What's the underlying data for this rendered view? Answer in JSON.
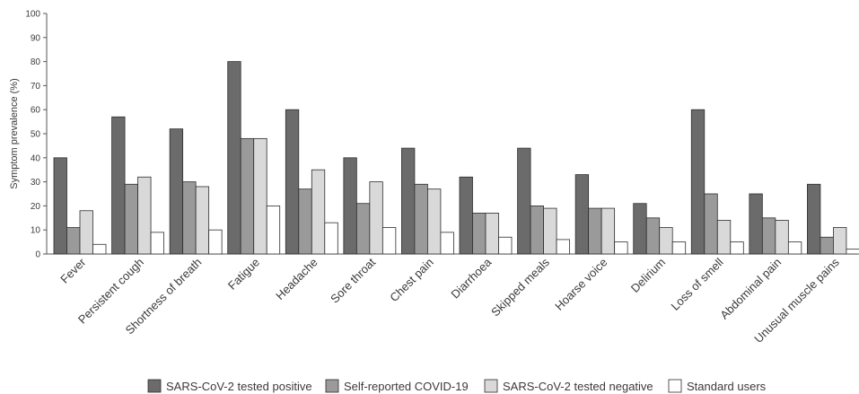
{
  "chart_data": {
    "type": "bar",
    "title": "",
    "xlabel": "",
    "ylabel": "Symptom prevalence (%)",
    "ylim": [
      0,
      100
    ],
    "yticks": [
      0,
      10,
      20,
      30,
      40,
      50,
      60,
      70,
      80,
      90,
      100
    ],
    "grid": false,
    "legend_position": "bottom",
    "categories": [
      "Fever",
      "Persistent cough",
      "Shortness of breath",
      "Fatigue",
      "Headache",
      "Sore throat",
      "Chest pain",
      "Diarrhoea",
      "Skipped meals",
      "Hoarse voice",
      "Delirium",
      "Loss of smell",
      "Abdominal pain",
      "Unusual muscle pains"
    ],
    "series": [
      {
        "name": "SARS-CoV-2 tested positive",
        "color": "#6b6b6b",
        "values": [
          40,
          57,
          52,
          80,
          60,
          40,
          44,
          32,
          44,
          33,
          21,
          60,
          25,
          29
        ]
      },
      {
        "name": "Self-reported COVID-19",
        "color": "#9a9a9a",
        "values": [
          11,
          29,
          30,
          48,
          27,
          21,
          29,
          17,
          20,
          19,
          15,
          25,
          15,
          7
        ]
      },
      {
        "name": "SARS-CoV-2 tested negative",
        "color": "#d9d9d9",
        "values": [
          18,
          32,
          28,
          48,
          35,
          30,
          27,
          17,
          19,
          19,
          11,
          14,
          14,
          11
        ]
      },
      {
        "name": "Standard users",
        "color": "#ffffff",
        "values": [
          4,
          9,
          10,
          20,
          13,
          11,
          9,
          7,
          6,
          5,
          5,
          5,
          5,
          2
        ]
      }
    ]
  }
}
